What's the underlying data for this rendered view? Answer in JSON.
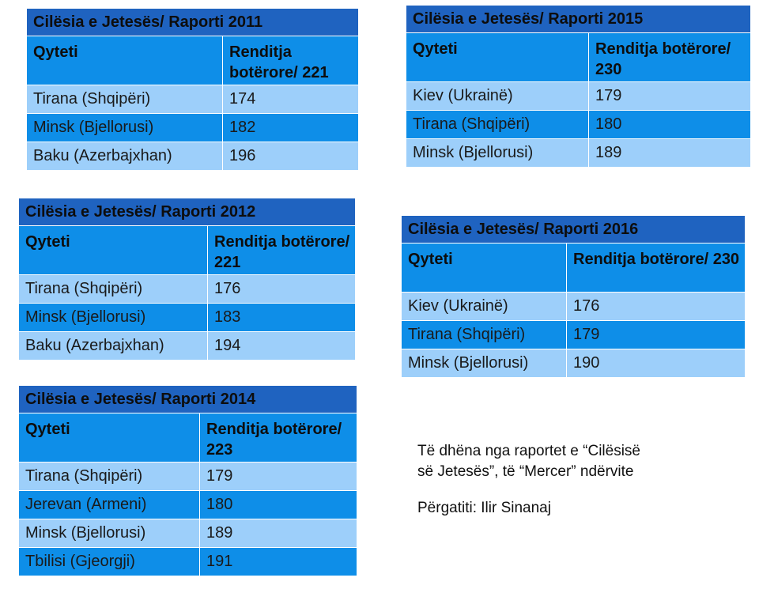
{
  "tables": [
    {
      "title": "Cilësia e Jetesës/ Raporti 2011",
      "col1_header": "Qyteti",
      "col2_header": "Renditja botërore/ 221",
      "rows": [
        {
          "city": "Tirana (Shqipëri)",
          "rank": "174"
        },
        {
          "city": "Minsk (Bjellorusi)",
          "rank": "182"
        },
        {
          "city": "Baku (Azerbajxhan)",
          "rank": "196"
        }
      ]
    },
    {
      "title": "Cilësia e Jetesës/ Raporti 2012",
      "col1_header": "Qyteti",
      "col2_header": "Renditja botërore/ 221",
      "rows": [
        {
          "city": "Tirana (Shqipëri)",
          "rank": "176"
        },
        {
          "city": "Minsk (Bjellorusi)",
          "rank": "183"
        },
        {
          "city": "Baku (Azerbajxhan)",
          "rank": "194"
        }
      ]
    },
    {
      "title": "Cilësia e Jetesës/ Raporti 2014",
      "col1_header": "Qyteti",
      "col2_header": "Renditja botërore/ 223",
      "rows": [
        {
          "city": "Tirana (Shqipëri)",
          "rank": "179"
        },
        {
          "city": "Jerevan (Armeni)",
          "rank": "180"
        },
        {
          "city": "Minsk (Bjellorusi)",
          "rank": "189"
        },
        {
          "city": "Tbilisi (Gjeorgji)",
          "rank": "191"
        }
      ]
    },
    {
      "title": "Cilësia e Jetesës/ Raporti 2015",
      "col1_header": "Qyteti",
      "col2_header": "Renditja botërore/ 230",
      "rows": [
        {
          "city": "Kiev (Ukrainë)",
          "rank": "179"
        },
        {
          "city": "Tirana (Shqipëri)",
          "rank": "180"
        },
        {
          "city": "Minsk (Bjellorusi)",
          "rank": "189"
        }
      ]
    },
    {
      "title": "Cilësia e Jetesës/ Raporti 2016",
      "col1_header": "Qyteti",
      "col2_header": "Renditja botërore/ 230",
      "rows": [
        {
          "city": "Kiev (Ukrainë)",
          "rank": "176"
        },
        {
          "city": "Tirana (Shqipëri)",
          "rank": "179"
        },
        {
          "city": "Minsk (Bjellorusi)",
          "rank": "190"
        }
      ]
    }
  ],
  "note": {
    "line1": "Të dhëna nga raportet e “Cilësisë",
    "line2": "së Jetesës”, të “Mercer” ndërvite",
    "author": "Përgatiti: Ilir Sinanaj"
  },
  "colors": {
    "title_bar": "#1f63c0",
    "header_and_dark_row": "#0e8ee8",
    "light_row": "#9dcffa"
  }
}
